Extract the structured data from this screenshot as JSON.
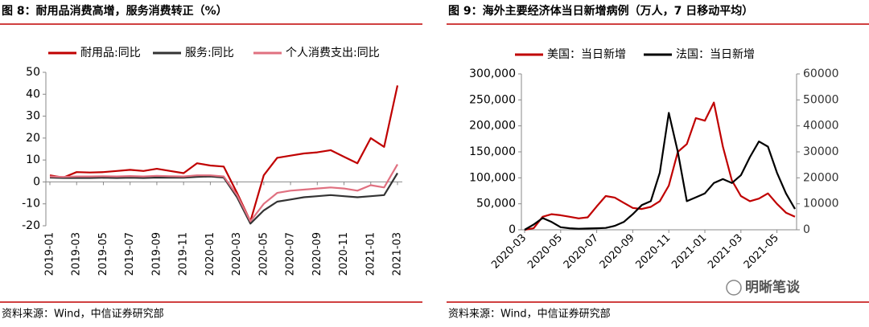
{
  "chart_data": [
    {
      "type": "line",
      "title": "图 8：耐用品消费高增，服务消费转正（%）",
      "source": "资料来源：Wind，中信证券研究部",
      "categories": [
        "2019-01",
        null,
        "2019-03",
        null,
        "2019-05",
        null,
        "2019-07",
        null,
        "2019-09",
        null,
        "2019-11",
        null,
        "2020-01",
        null,
        "2020-03",
        null,
        "2020-05",
        null,
        "2020-07",
        null,
        "2020-09",
        null,
        "2020-11",
        null,
        "2021-01",
        null,
        "2021-03"
      ],
      "series": [
        {
          "name": "耐用品:同比",
          "color": "#c00000",
          "values": [
            3,
            2,
            4.5,
            4.3,
            4.5,
            5,
            5.5,
            5,
            6,
            5,
            4,
            8.5,
            7.5,
            7,
            -5,
            -18,
            3,
            11,
            12,
            13,
            13.5,
            14.5,
            11.5,
            8.5,
            20,
            16,
            44
          ]
        },
        {
          "name": "服务:同比",
          "color": "#333333",
          "values": [
            2,
            1.8,
            1.8,
            1.8,
            1.9,
            1.8,
            1.9,
            1.8,
            2,
            1.9,
            1.9,
            2.3,
            2.5,
            2,
            -7,
            -19,
            -13,
            -9,
            -8,
            -7,
            -6.5,
            -6,
            -6.5,
            -7,
            -6.5,
            -6,
            4
          ]
        },
        {
          "name": "个人消费支出:同比",
          "color": "#e07080",
          "values": [
            2.5,
            2.3,
            2.5,
            2.5,
            2.6,
            2.5,
            2.7,
            2.5,
            2.8,
            2.6,
            2.5,
            3,
            3,
            2.5,
            -6,
            -18,
            -10,
            -5,
            -4,
            -3.5,
            -3,
            -2.5,
            -3,
            -4,
            -1.5,
            -2.5,
            8
          ]
        }
      ],
      "ylim": [
        -20,
        50
      ],
      "yticks": [
        -20,
        -10,
        0,
        10,
        20,
        30,
        40,
        50
      ]
    },
    {
      "type": "line",
      "title": "图 9：海外主要经济体当日新增病例（万人，7 日移动平均）",
      "source": "资料来源：Wind，中信证券研究部",
      "watermark": "明晰笔谈",
      "categories": [
        "2020-03",
        null,
        null,
        null,
        "2020-05",
        null,
        null,
        null,
        "2020-07",
        null,
        null,
        null,
        "2020-09",
        null,
        null,
        null,
        "2020-11",
        null,
        null,
        null,
        "2021-01",
        null,
        null,
        null,
        "2021-03",
        null,
        null,
        null,
        "2021-05",
        null,
        null
      ],
      "series": [
        {
          "name": "美国：当日新增",
          "color": "#c00000",
          "values": [
            0,
            3000,
            25000,
            30000,
            28000,
            25000,
            22000,
            24000,
            45000,
            65000,
            62000,
            52000,
            42000,
            40000,
            44000,
            55000,
            85000,
            150000,
            165000,
            215000,
            210000,
            245000,
            160000,
            95000,
            65000,
            55000,
            60000,
            70000,
            50000,
            33000,
            25000
          ]
        },
        {
          "name": "法国：当日新增",
          "color": "#000000",
          "axis": "y2",
          "values": [
            0,
            2000,
            4500,
            3000,
            1000,
            600,
            400,
            500,
            600,
            700,
            1500,
            3000,
            6000,
            9500,
            11000,
            22000,
            45000,
            30000,
            11000,
            12500,
            14000,
            18000,
            19500,
            18000,
            21000,
            28000,
            34000,
            32000,
            22000,
            14000,
            8000
          ]
        }
      ],
      "ylim": [
        0,
        300000
      ],
      "yticks": [
        0,
        {
          "value": 50000,
          "label": "50,000"
        },
        {
          "value": 100000,
          "label": "100,000"
        },
        {
          "value": 150000,
          "label": "150,000"
        },
        {
          "value": 200000,
          "label": "200,000"
        },
        {
          "value": 250000,
          "label": "250,000"
        },
        {
          "value": 300000,
          "label": "300,000"
        }
      ],
      "y2lim": [
        0,
        60000
      ],
      "y2ticks": [
        0,
        10000,
        20000,
        30000,
        40000,
        50000,
        60000
      ]
    }
  ]
}
